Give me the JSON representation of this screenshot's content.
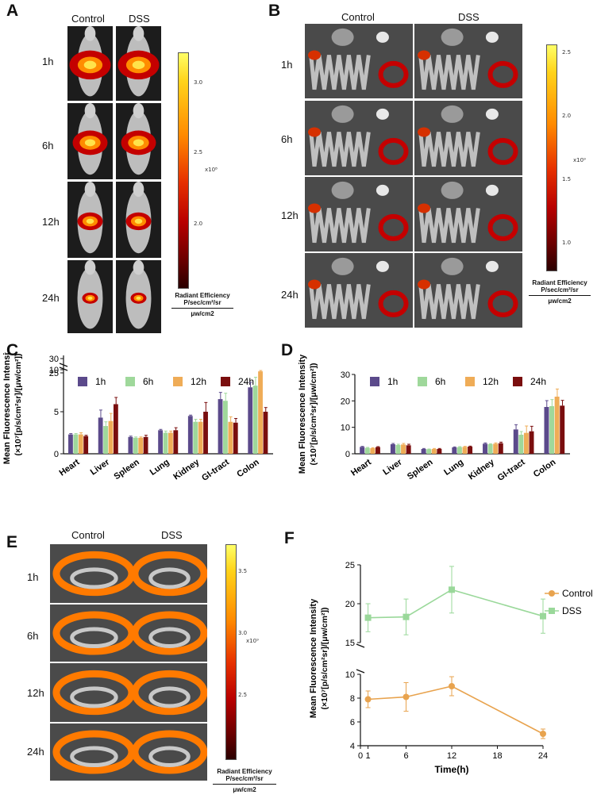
{
  "panels": {
    "A": {
      "letter": "A",
      "col_labels": [
        "Control",
        "DSS"
      ],
      "row_labels": [
        "1h",
        "6h",
        "12h",
        "24h"
      ],
      "colorbar": {
        "ticks": [
          "3.0",
          "2.5",
          "2.0"
        ],
        "scale": "x10⁸"
      },
      "units": {
        "line1": "Radiant Efficiency",
        "line2": "P/sec/cm²/sr",
        "line3": "μw/cm2"
      }
    },
    "B": {
      "letter": "B",
      "col_labels": [
        "Control",
        "DSS"
      ],
      "row_labels": [
        "1h",
        "6h",
        "12h",
        "24h"
      ],
      "colorbar": {
        "ticks": [
          "2.5",
          "2.0",
          "1.5",
          "1.0"
        ],
        "scale": "x10⁹"
      },
      "units": {
        "line1": "Radiant Efficiency",
        "line2": "P/sec/cm²/sr",
        "line3": "μw/cm2"
      }
    },
    "C": {
      "letter": "C"
    },
    "D": {
      "letter": "D"
    },
    "E": {
      "letter": "E",
      "col_labels": [
        "Control",
        "DSS"
      ],
      "row_labels": [
        "1h",
        "6h",
        "12h",
        "24h"
      ],
      "colorbar": {
        "ticks": [
          "3.5",
          "3.0",
          "2.5"
        ],
        "scale": "x10⁹"
      },
      "units": {
        "line1": "Radiant Efficiency",
        "line2": "P/sec/cm²/sr",
        "line3": "μw/cm2"
      }
    },
    "F": {
      "letter": "F"
    }
  },
  "colors": {
    "h1": "#5b4a8b",
    "h6": "#9fd89b",
    "h12": "#efac57",
    "h24": "#7a0e0e",
    "control": "#e8a34e",
    "dss": "#9ad89a"
  },
  "chart_data": [
    {
      "id": "C",
      "type": "bar",
      "ylabel": "Mean Fluorescence Intensity",
      "ylabel2": "(×10⁷[p/s/cm²sr]/[μw/cm²])",
      "categories": [
        "Heart",
        "Liver",
        "Spleen",
        "Lung",
        "Kidney",
        "GI-tract",
        "Colon"
      ],
      "y_break": {
        "lower": [
          0,
          10
        ],
        "upper": [
          25,
          30
        ]
      },
      "yticks": [
        "0",
        "5",
        "10",
        "25",
        "30"
      ],
      "series": [
        {
          "name": "1h",
          "values": [
            2.3,
            4.3,
            2.0,
            2.8,
            4.5,
            6.5,
            7.9
          ],
          "errors": [
            0.1,
            0.9,
            0.1,
            0.1,
            0.1,
            0.8,
            0.6
          ]
        },
        {
          "name": "6h",
          "values": [
            2.3,
            3.3,
            1.9,
            2.5,
            3.8,
            6.3,
            8.1
          ],
          "errors": [
            0.1,
            0.5,
            0.1,
            0.2,
            0.3,
            0.9,
            1.0
          ]
        },
        {
          "name": "12h",
          "values": [
            2.3,
            3.9,
            1.9,
            2.5,
            3.8,
            3.8,
            9.8
          ],
          "errors": [
            0.2,
            0.9,
            0.1,
            0.2,
            0.3,
            0.6,
            0.1
          ]
        },
        {
          "name": "24h",
          "values": [
            2.1,
            5.9,
            2.0,
            2.8,
            5.0,
            3.7,
            5.0
          ],
          "errors": [
            0.1,
            0.8,
            0.2,
            0.3,
            1.1,
            0.5,
            0.5
          ]
        }
      ]
    },
    {
      "id": "D",
      "type": "bar",
      "ylabel": "Mean Fluorescence Intensity",
      "ylabel2": "(×10⁷[p/s/cm²sr]/[μw/cm²])",
      "categories": [
        "Heart",
        "Liver",
        "Spleen",
        "Lung",
        "Kidney",
        "GI-tract",
        "Colon"
      ],
      "ylim": [
        0,
        30
      ],
      "yticks": [
        "0",
        "10",
        "20",
        "30"
      ],
      "series": [
        {
          "name": "1h",
          "values": [
            2.6,
            3.6,
            1.8,
            2.4,
            3.8,
            9.2,
            17.7
          ],
          "errors": [
            0.2,
            0.3,
            0.2,
            0.2,
            0.3,
            1.8,
            2.4
          ]
        },
        {
          "name": "6h",
          "values": [
            2.2,
            3.3,
            1.7,
            2.5,
            3.6,
            7.2,
            18.0
          ],
          "errors": [
            0.2,
            0.3,
            0.1,
            0.2,
            0.2,
            1.2,
            2.5
          ]
        },
        {
          "name": "12h",
          "values": [
            2.1,
            3.5,
            1.8,
            2.6,
            3.8,
            7.9,
            21.6
          ],
          "errors": [
            0.2,
            0.4,
            0.2,
            0.2,
            0.3,
            2.6,
            2.9
          ]
        },
        {
          "name": "24h",
          "values": [
            2.5,
            3.2,
            1.8,
            2.7,
            4.0,
            8.5,
            18.2
          ],
          "errors": [
            0.2,
            0.4,
            0.2,
            0.2,
            0.4,
            1.9,
            2.0
          ]
        }
      ]
    },
    {
      "id": "F",
      "type": "line",
      "xlabel": "Time(h)",
      "ylabel": "Mean Fluorescence Intensity",
      "ylabel2": "(×10⁷[p/s/cm²sr]/[μw/cm²])",
      "x": [
        1,
        6,
        12,
        24
      ],
      "xticks": [
        "0",
        "1",
        "6",
        "12",
        "18",
        "24"
      ],
      "yticks": [
        "4",
        "6",
        "8",
        "10",
        "15",
        "20",
        "25"
      ],
      "y_break": {
        "lower": [
          4,
          10
        ],
        "upper": [
          15,
          25
        ]
      },
      "legend": "right",
      "series": [
        {
          "name": "Control",
          "values": [
            7.9,
            8.1,
            9.0,
            5.0
          ],
          "errors": [
            0.7,
            1.2,
            0.8,
            0.4
          ]
        },
        {
          "name": "DSS",
          "values": [
            18.2,
            18.3,
            21.8,
            18.4
          ],
          "errors": [
            1.8,
            2.3,
            3.0,
            2.2
          ]
        }
      ]
    }
  ]
}
